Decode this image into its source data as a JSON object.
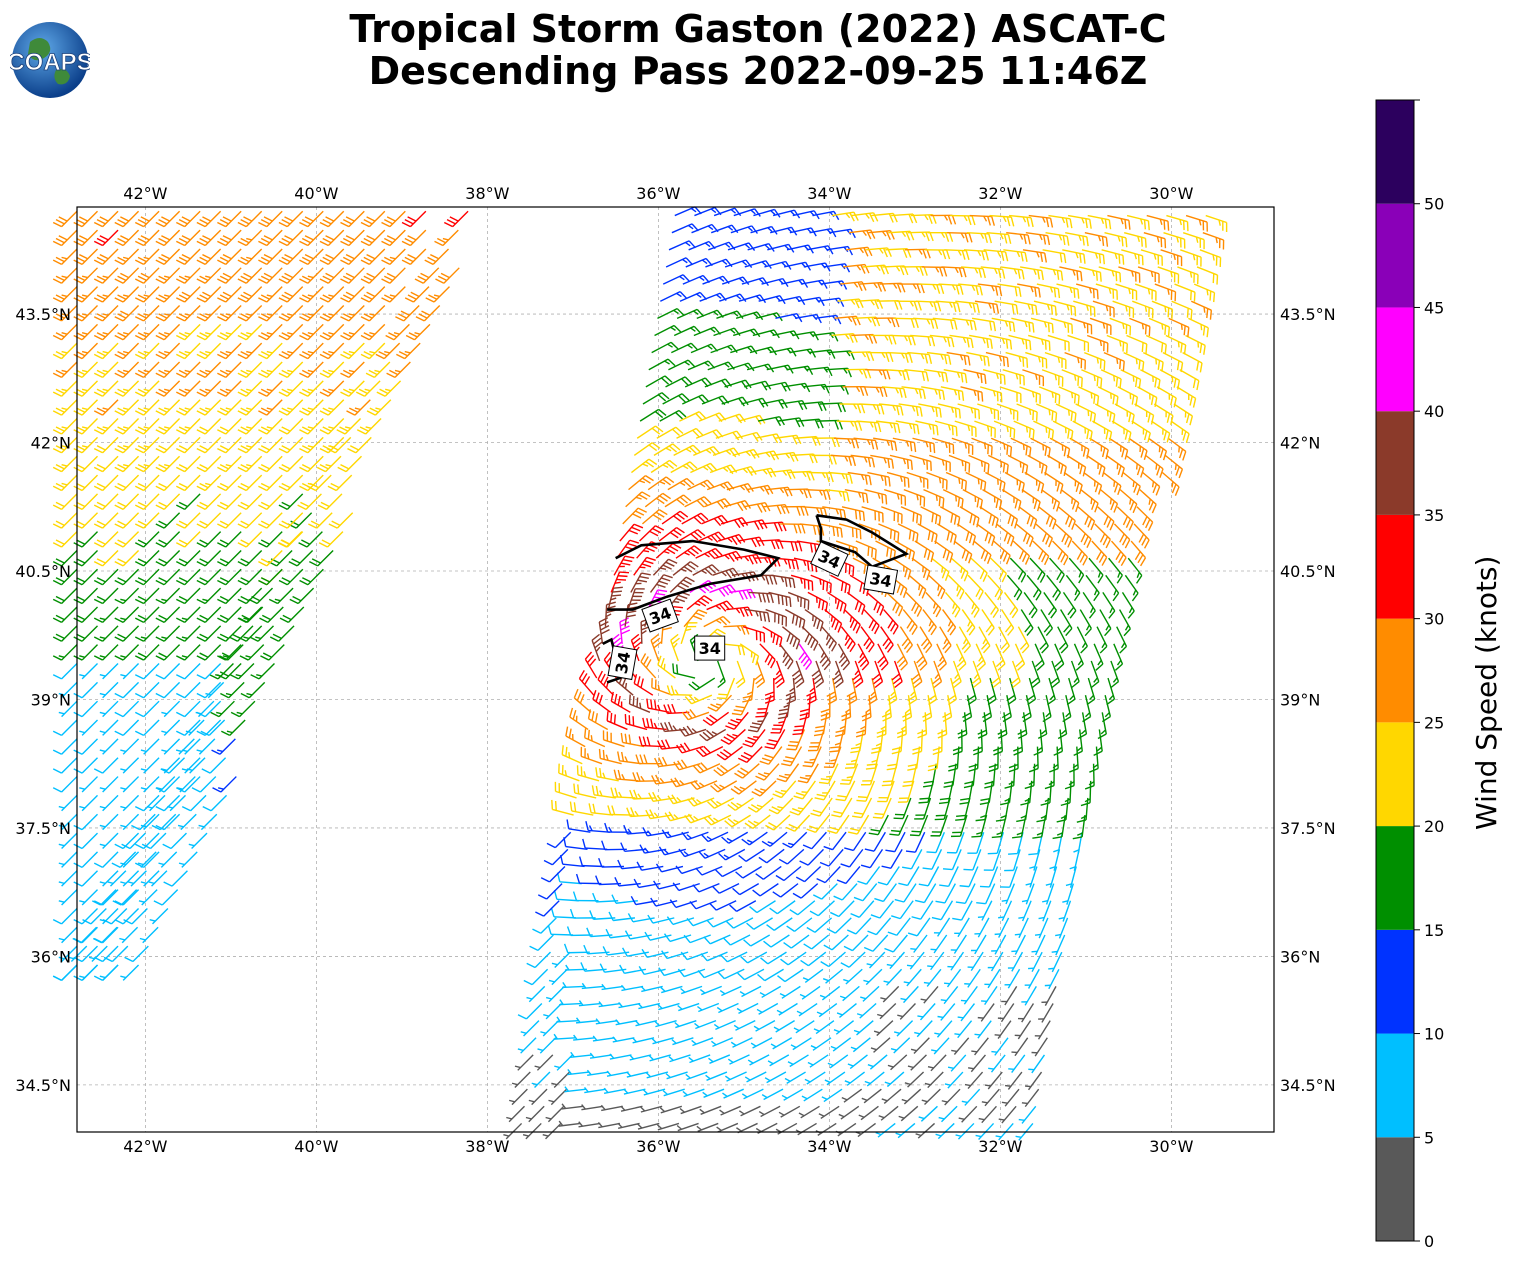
{
  "title_line1": "Tropical Storm Gaston (2022) ASCAT-C",
  "title_line2": "Descending Pass 2022-09-25 11:46Z",
  "logo_text": "COAPS",
  "map": {
    "lon_range": [
      -42.8,
      -28.8
    ],
    "lat_range": [
      33.95,
      44.75
    ],
    "lon_ticks": [
      "42°W",
      "40°W",
      "38°W",
      "36°W",
      "34°W",
      "32°W",
      "30°W"
    ],
    "lon_tick_values": [
      -42,
      -40,
      -38,
      -36,
      -34,
      -32,
      -30
    ],
    "lat_ticks": [
      "43.5°N",
      "42°N",
      "40.5°N",
      "39°N",
      "37.5°N",
      "36°N",
      "34.5°N"
    ],
    "lat_tick_values": [
      43.5,
      42,
      40.5,
      39,
      37.5,
      36,
      34.5
    ],
    "gridlines": true,
    "contour_label": "34",
    "contour_labels_count": 5,
    "contour_level_knots": 34,
    "storm_center": {
      "lon": -35.4,
      "lat": 39.45
    }
  },
  "colorbar": {
    "label": "Wind Speed (knots)",
    "tick_labels": [
      "0",
      "5",
      "10",
      "15",
      "20",
      "25",
      "30",
      "35",
      "40",
      "45",
      "50"
    ],
    "bins": [
      {
        "min": 0,
        "max": 5,
        "color": "#595959"
      },
      {
        "min": 5,
        "max": 10,
        "color": "#00bfff"
      },
      {
        "min": 10,
        "max": 15,
        "color": "#0033ff"
      },
      {
        "min": 15,
        "max": 20,
        "color": "#008f00"
      },
      {
        "min": 20,
        "max": 25,
        "color": "#ffd700"
      },
      {
        "min": 25,
        "max": 30,
        "color": "#ff8c00"
      },
      {
        "min": 30,
        "max": 35,
        "color": "#ff0000"
      },
      {
        "min": 35,
        "max": 40,
        "color": "#8b3a2a"
      },
      {
        "min": 40,
        "max": 45,
        "color": "#ff00ff"
      },
      {
        "min": 45,
        "max": 50,
        "color": "#8a00b8"
      },
      {
        "min": 50,
        "max": 55,
        "color": "#2c005e"
      }
    ]
  }
}
